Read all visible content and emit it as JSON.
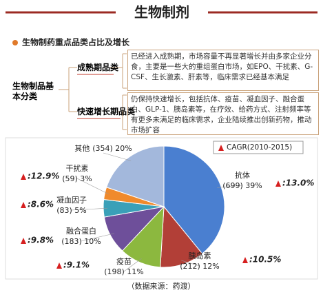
{
  "header": {
    "title": "生物制剂"
  },
  "section": {
    "title": "生物制药重点品类占比及增长"
  },
  "classification": {
    "root": "生物制品基本分类",
    "branches": [
      {
        "label": "成熟期品类",
        "description": "已经进入成熟期，市场容量不再显著增长并由多家企业分食，主要是一些大的重组蛋白市场，如EPO、干扰素、G-CSF、生长激素、肝素等，临床需求已经基本满足"
      },
      {
        "label": "快速增长期品类",
        "description": "仍保持快速增长，包括抗体、疫苗、凝血因子、融合蛋白、GLP-1、胰岛素等，在疗效、给药方式、注射频率等有更多未满足的临床需求，企业陆续推出创新药物，推动市场扩容"
      }
    ]
  },
  "chart_data": {
    "type": "pie",
    "categories": [
      "抗体",
      "胰岛素",
      "疫苗",
      "融合蛋白",
      "凝血因子",
      "干扰素",
      "其他"
    ],
    "values": [
      699,
      212,
      198,
      183,
      83,
      59,
      354
    ],
    "value_labels": [
      "(699) 39%",
      "(212) 12%",
      "(198) 11%",
      "(183) 10%",
      "(83) 5%",
      "(59) 3%",
      "(354) 20%"
    ],
    "colors": [
      "#4a7fd0",
      "#b23f37",
      "#8cb83f",
      "#6e4f9a",
      "#3aa0b8",
      "#f08a2c",
      "#a3b8dc"
    ],
    "annotation_title": "CAGR(2010-2015)",
    "annotations": [
      ":13.0%",
      ":10.5%",
      ":9.1%",
      ":9.8%",
      ":8.6%",
      ":12.9%",
      null
    ]
  },
  "source": "（数据来源：药渡）"
}
